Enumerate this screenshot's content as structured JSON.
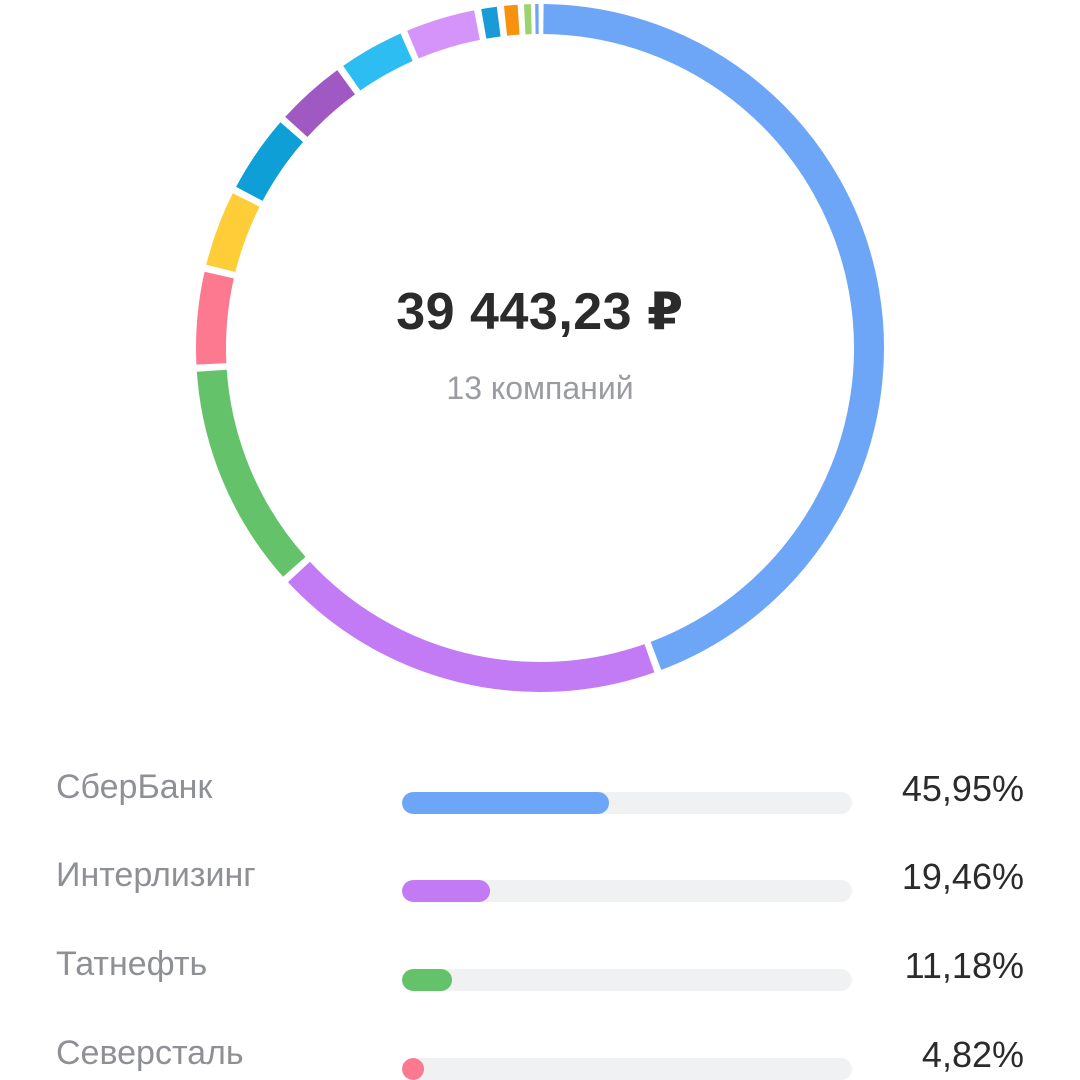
{
  "summary": {
    "total": "39 443,23 ₽",
    "count": "13 компаний"
  },
  "chart_data": {
    "type": "pie",
    "style": "donut",
    "slices": [
      {
        "name": "СберБанк",
        "value": 45.95,
        "color": "#6ea6f7"
      },
      {
        "name": "Интерлизинг",
        "value": 19.46,
        "color": "#c27af5"
      },
      {
        "name": "Татнефть",
        "value": 11.18,
        "color": "#64c36a"
      },
      {
        "name": "Северсталь",
        "value": 4.82,
        "color": "#fd7990"
      },
      {
        "name": "",
        "value": 4.0,
        "color": "#fecd38"
      },
      {
        "name": "",
        "value": 4.1,
        "color": "#0d9fd6"
      },
      {
        "name": "",
        "value": 3.7,
        "color": "#a059c2"
      },
      {
        "name": "",
        "value": 3.5,
        "color": "#2ebdf2"
      },
      {
        "name": "",
        "value": 3.7,
        "color": "#d494f9"
      },
      {
        "name": "",
        "value": 1.1,
        "color": "#1a9bd8"
      },
      {
        "name": "",
        "value": 1.0,
        "color": "#f7920f"
      },
      {
        "name": "",
        "value": 0.6,
        "color": "#9bd36d"
      },
      {
        "name": "",
        "value": 0.3,
        "color": "#6ea6f7"
      }
    ]
  },
  "legend": [
    {
      "name": "СберБанк",
      "pct": "45,95%",
      "fill": 0.4595,
      "color": "#6ea6f7"
    },
    {
      "name": "Интерлизинг",
      "pct": "19,46%",
      "fill": 0.1946,
      "color": "#c27af5"
    },
    {
      "name": "Татнефть",
      "pct": "11,18%",
      "fill": 0.1118,
      "color": "#64c36a"
    },
    {
      "name": "Северсталь",
      "pct": "4,82%",
      "fill": 0.0482,
      "color": "#fd7990"
    }
  ]
}
